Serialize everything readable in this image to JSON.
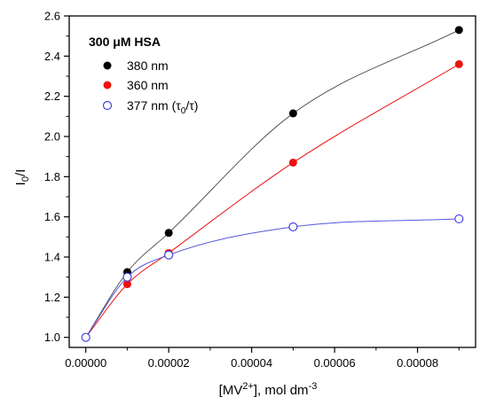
{
  "chart_data": {
    "type": "scatter",
    "legend_title": "300 μM HSA",
    "legend_placement": "top-left",
    "xlabel": {
      "main": "[MV",
      "sup": "2+",
      "mid": "], mol dm",
      "sup2": "-3"
    },
    "ylabel": {
      "main": "I",
      "sub": "0",
      "rest": "/I"
    },
    "xlim": [
      -4e-06,
      9.4e-05
    ],
    "ylim": [
      0.95,
      2.6
    ],
    "x_ticks": [
      0,
      2e-05,
      4e-05,
      6e-05,
      8e-05
    ],
    "x_tick_labels": [
      "0.00000",
      "0.00002",
      "0.00004",
      "0.00006",
      "0.00008"
    ],
    "y_ticks": [
      1.0,
      1.2,
      1.4,
      1.6,
      1.8,
      2.0,
      2.2,
      2.4,
      2.6
    ],
    "y_tick_labels": [
      "1.0",
      "1.2",
      "1.4",
      "1.6",
      "1.8",
      "2.0",
      "2.2",
      "2.4",
      "2.6"
    ],
    "grid": false,
    "series": [
      {
        "name": "380 nm",
        "color": "#000000",
        "line_color": "#555555",
        "marker": "filled-circle",
        "x": [
          0,
          1e-05,
          2e-05,
          5e-05,
          9e-05
        ],
        "y": [
          1.0,
          1.325,
          1.52,
          2.115,
          2.53
        ]
      },
      {
        "name": "360 nm",
        "color": "#ee1111",
        "line_color": "#ee1111",
        "marker": "filled-circle",
        "x": [
          0,
          1e-05,
          2e-05,
          5e-05,
          9e-05
        ],
        "y": [
          1.0,
          1.265,
          1.42,
          1.87,
          2.36
        ]
      },
      {
        "name": "377 nm (τ0/τ)",
        "label_parts": {
          "pre": "377 nm (τ",
          "sub1": "0",
          "mid": "/τ)"
        },
        "color": "#4444dd",
        "line_color": "#5555dd",
        "marker": "open-circle",
        "x": [
          0,
          1e-05,
          2e-05,
          5e-05,
          9e-05
        ],
        "y": [
          1.0,
          1.3,
          1.41,
          1.55,
          1.59
        ]
      }
    ]
  }
}
